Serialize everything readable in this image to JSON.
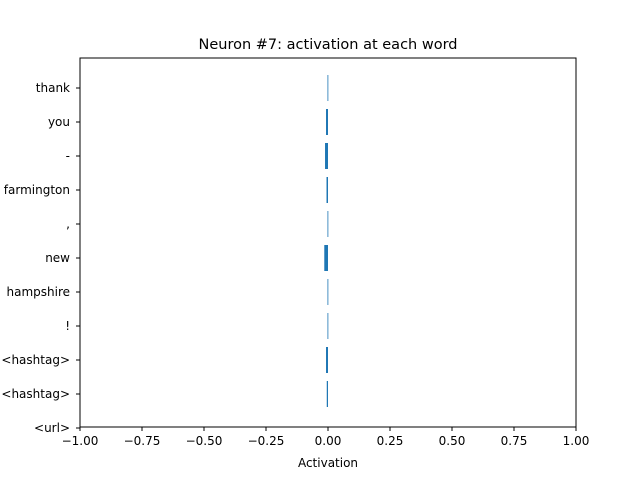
{
  "chart_data": {
    "type": "bar",
    "orientation": "horizontal",
    "title": "Neuron #7: activation at each word",
    "xlabel": "Activation",
    "ylabel": "",
    "xlim": [
      -1.0,
      1.0
    ],
    "xticks": [
      "−1.00",
      "−0.75",
      "−0.50",
      "−0.25",
      "0.00",
      "0.25",
      "0.50",
      "0.75",
      "1.00"
    ],
    "xtick_values": [
      -1.0,
      -0.75,
      -0.5,
      -0.25,
      0.0,
      0.25,
      0.5,
      0.75,
      1.0
    ],
    "categories": [
      "thank",
      "you",
      "-",
      "farmington",
      ",",
      "new",
      "hampshire",
      "!",
      "<hashtag>",
      "<hashtag>",
      "<url>"
    ],
    "values": [
      -0.002,
      -0.008,
      -0.012,
      -0.006,
      -0.002,
      -0.015,
      -0.002,
      -0.002,
      -0.008,
      -0.005,
      null
    ],
    "bar_color": "#1f77b4",
    "grid": false,
    "legend": "none"
  }
}
